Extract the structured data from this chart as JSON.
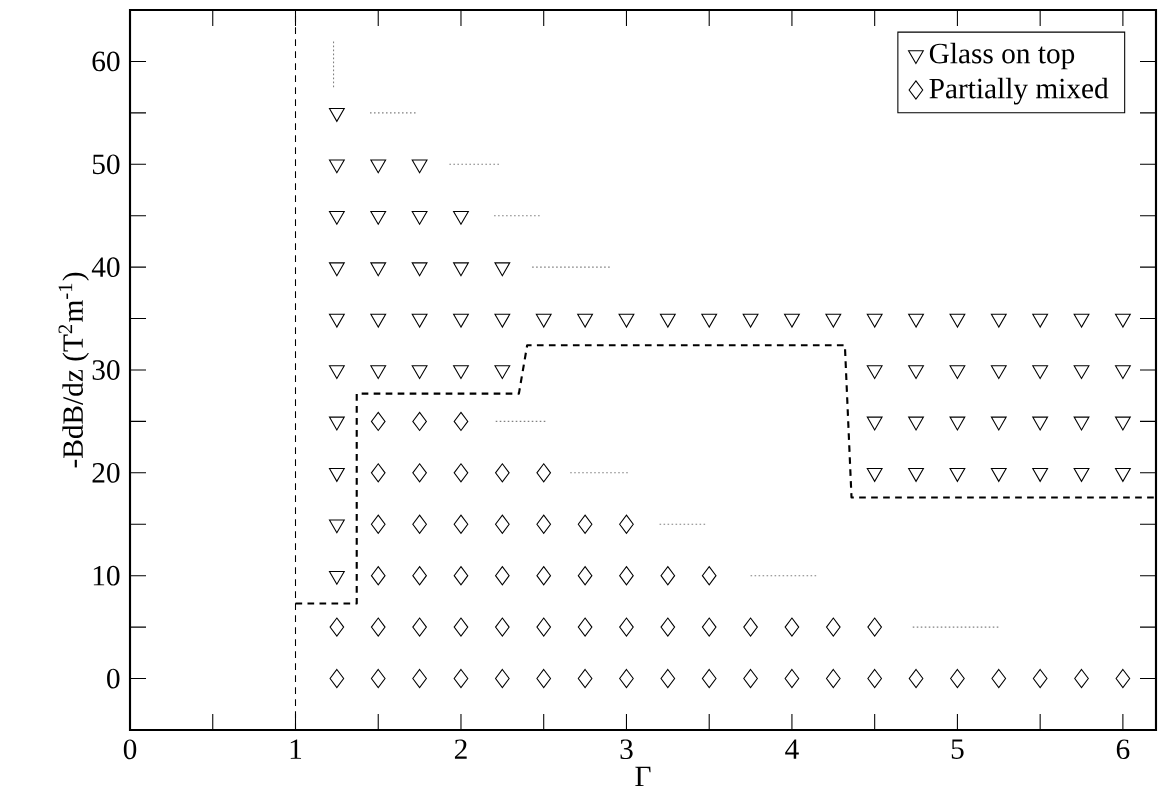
{
  "chart_data": {
    "type": "scatter",
    "xlabel": "Γ",
    "ylabel": "-BdB/dz (T$^{2}$m$^{-1}$)",
    "xlim": [
      0,
      6.2
    ],
    "ylim": [
      -5,
      65
    ],
    "xticks": [
      0,
      {
        "value": 0.5,
        "label": null
      },
      1,
      {
        "value": 1.5,
        "label": null
      },
      2,
      {
        "value": 2.5,
        "label": null
      },
      3,
      {
        "value": 3.5,
        "label": null
      },
      4,
      {
        "value": 4.5,
        "label": null
      },
      5,
      {
        "value": 5.5,
        "label": null
      },
      6
    ],
    "yticks": [
      0,
      {
        "value": 5,
        "label": null
      },
      10,
      {
        "value": 15,
        "label": null
      },
      20,
      {
        "value": 25,
        "label": null
      },
      30,
      {
        "value": 35,
        "label": null
      },
      40,
      {
        "value": 45,
        "label": null
      },
      50,
      {
        "value": 55,
        "label": null
      },
      60
    ],
    "grid": false,
    "legend": "top right",
    "ref_lines": [
      {
        "axis": "x",
        "value": 1,
        "color": "#000000",
        "line_style": "dashed"
      }
    ],
    "series": [
      {
        "name": "Glass on top",
        "marker": "triangle",
        "color": "#000000",
        "x": [
          1.25,
          1.25,
          1.5,
          1.75,
          1.25,
          1.5,
          1.75,
          2,
          1.25,
          1.5,
          1.75,
          2,
          2.25,
          1.25,
          1.5,
          1.75,
          2,
          2.25,
          2.5,
          2.75,
          3,
          3.25,
          3.5,
          3.75,
          4,
          4.25,
          4.5,
          4.75,
          5,
          5.25,
          5.5,
          5.75,
          6,
          1.25,
          1.5,
          1.75,
          2,
          2.25,
          4.5,
          4.75,
          5,
          5.25,
          5.5,
          5.75,
          6,
          1.25,
          4.5,
          4.75,
          5,
          5.25,
          5.5,
          5.75,
          6,
          1.25,
          4.5,
          4.75,
          5,
          5.25,
          5.5,
          5.75,
          6,
          1.25,
          1.25
        ],
        "values": [
          55,
          50,
          50,
          50,
          45,
          45,
          45,
          45,
          40,
          40,
          40,
          40,
          40,
          35,
          35,
          35,
          35,
          35,
          35,
          35,
          35,
          35,
          35,
          35,
          35,
          35,
          35,
          35,
          35,
          35,
          35,
          35,
          35,
          30,
          30,
          30,
          30,
          30,
          30,
          30,
          30,
          30,
          30,
          30,
          30,
          25,
          25,
          25,
          25,
          25,
          25,
          25,
          25,
          20,
          20,
          20,
          20,
          20,
          20,
          20,
          20,
          15,
          10
        ]
      },
      {
        "name": "Partially mixed",
        "marker": "diamond",
        "color": "#000000",
        "x": [
          1.5,
          1.75,
          2,
          1.5,
          1.75,
          2,
          2.25,
          2.5,
          1.5,
          1.75,
          2,
          2.25,
          2.5,
          2.75,
          3,
          1.5,
          1.75,
          2,
          2.25,
          2.5,
          2.75,
          3,
          3.25,
          3.5,
          1.25,
          1.5,
          1.75,
          2,
          2.25,
          2.5,
          2.75,
          3,
          3.25,
          3.5,
          3.75,
          4,
          4.25,
          4.5,
          1.25,
          1.5,
          1.75,
          2,
          2.25,
          2.5,
          2.75,
          3,
          3.25,
          3.5,
          3.75,
          4,
          4.25,
          4.5,
          4.75,
          5,
          5.25,
          5.5,
          5.75,
          6
        ],
        "values": [
          25,
          25,
          25,
          20,
          20,
          20,
          20,
          20,
          15,
          15,
          15,
          15,
          15,
          15,
          15,
          10,
          10,
          10,
          10,
          10,
          10,
          10,
          10,
          10,
          5,
          5,
          5,
          5,
          5,
          5,
          5,
          5,
          5,
          5,
          5,
          5,
          5,
          5,
          0,
          0,
          0,
          0,
          0,
          0,
          0,
          0,
          0,
          0,
          0,
          0,
          0,
          0,
          0,
          0,
          0,
          0,
          0,
          0
        ]
      },
      {
        "type": "line",
        "line_style": "dashed",
        "color": "#000000",
        "x": [
          1,
          1.37,
          1.37,
          2.35,
          2.4,
          4.32,
          4.36,
          6.2
        ],
        "values": [
          7.3,
          7.3,
          27.7,
          27.7,
          32.4,
          32.4,
          17.6,
          17.6
        ]
      },
      {
        "type": "line",
        "line_style": "dotted",
        "color": "#808080",
        "x": [
          1.23,
          1.23
        ],
        "values": [
          57.5,
          62
        ]
      },
      {
        "type": "line",
        "line_style": "dotted",
        "color": "#808080",
        "x": [
          1.45,
          1.73
        ],
        "values": [
          55,
          55
        ]
      },
      {
        "type": "line",
        "line_style": "dotted",
        "color": "#808080",
        "x": [
          1.93,
          2.23
        ],
        "values": [
          50,
          50
        ]
      },
      {
        "type": "line",
        "line_style": "dotted",
        "color": "#808080",
        "x": [
          2.2,
          2.48
        ],
        "values": [
          45,
          45
        ]
      },
      {
        "type": "line",
        "line_style": "dotted",
        "color": "#808080",
        "x": [
          2.43,
          2.9
        ],
        "values": [
          40,
          40
        ]
      },
      {
        "type": "line",
        "line_style": "dotted",
        "color": "#808080",
        "x": [
          2.21,
          2.52
        ],
        "values": [
          25,
          25
        ]
      },
      {
        "type": "line",
        "line_style": "dotted",
        "color": "#808080",
        "x": [
          2.66,
          3.02
        ],
        "values": [
          20,
          20
        ]
      },
      {
        "type": "line",
        "line_style": "dotted",
        "color": "#808080",
        "x": [
          3.2,
          3.48
        ],
        "values": [
          15,
          15
        ]
      },
      {
        "type": "line",
        "line_style": "dotted",
        "color": "#808080",
        "x": [
          3.75,
          4.15
        ],
        "values": [
          10,
          10
        ]
      },
      {
        "type": "line",
        "line_style": "dotted",
        "color": "#808080",
        "x": [
          4.73,
          5.25
        ],
        "values": [
          5,
          5
        ]
      }
    ]
  }
}
